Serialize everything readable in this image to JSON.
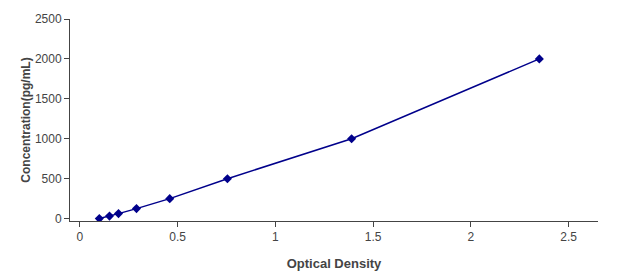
{
  "chart_data": {
    "type": "line",
    "x": [
      0.1,
      0.152,
      0.198,
      0.29,
      0.46,
      0.755,
      1.39,
      2.35
    ],
    "values": [
      0,
      31.25,
      62.5,
      125,
      250,
      500,
      1000,
      2000
    ],
    "color": "#00008B",
    "marker": "diamond",
    "line_style": "solid",
    "xlabel": "Optical Density",
    "ylabel": "Concentration(pg/mL)",
    "xlim": [
      -0.05,
      2.65
    ],
    "ylim": [
      -30,
      2500
    ],
    "xticks": [
      0,
      0.5,
      1,
      1.5,
      2,
      2.5
    ],
    "yticks": [
      0,
      500,
      1000,
      1500,
      2000,
      2500
    ],
    "grid": false
  }
}
